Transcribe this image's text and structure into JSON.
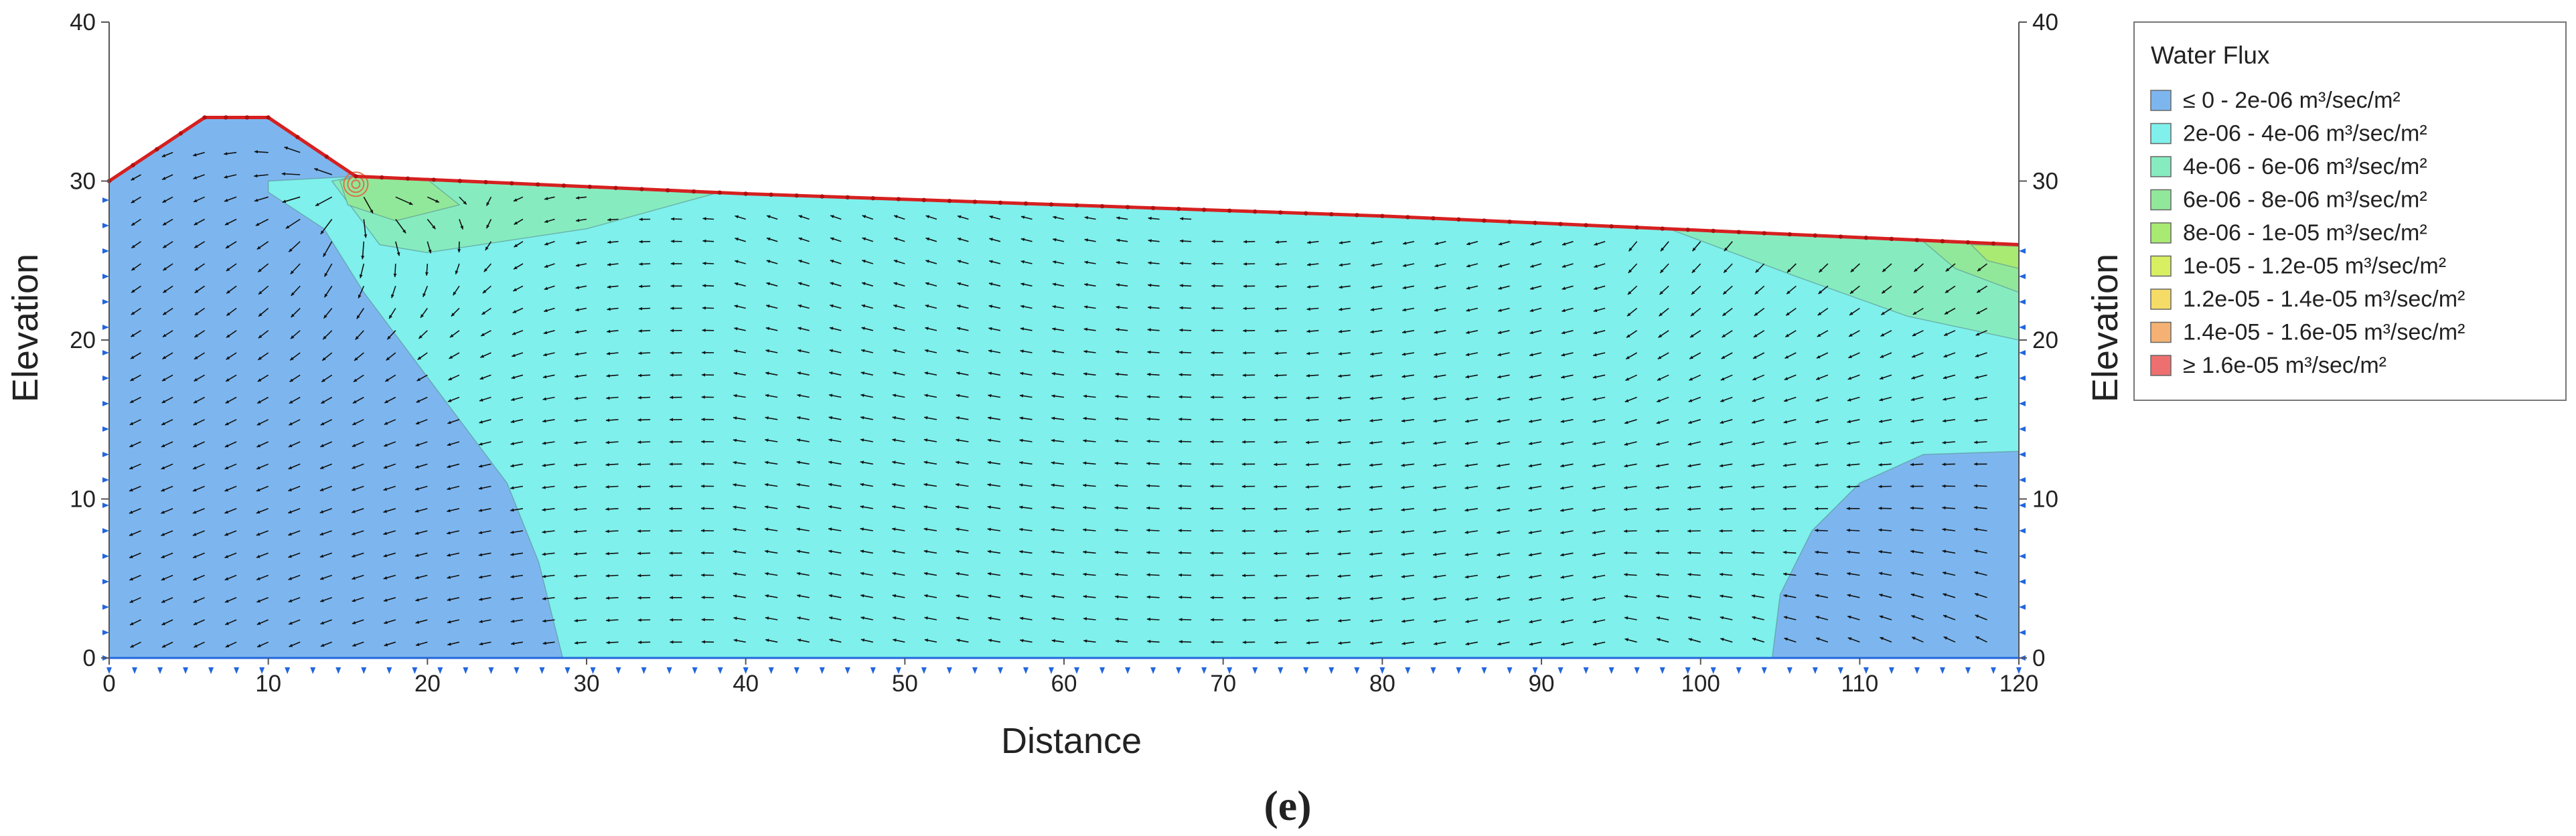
{
  "chart_data": {
    "type": "heatmap",
    "xlabel": "Distance",
    "ylabel_left": "Elevation",
    "ylabel_right": "Elevation",
    "xlim": [
      0,
      120
    ],
    "ylim": [
      0,
      40
    ],
    "x_ticks": [
      0,
      10,
      20,
      30,
      40,
      50,
      60,
      70,
      80,
      90,
      100,
      110,
      120
    ],
    "y_ticks": [
      0,
      10,
      20,
      30,
      40
    ],
    "panel_label": "(e)",
    "legend": {
      "title": "Water Flux",
      "placement": "right",
      "entries": [
        {
          "label": "≤ 0 - 2e-06 m³/sec/m²",
          "color": "#7db6ef"
        },
        {
          "label": "2e-06 - 4e-06 m³/sec/m²",
          "color": "#7ff0ec"
        },
        {
          "label": "4e-06 - 6e-06 m³/sec/m²",
          "color": "#86ecc0"
        },
        {
          "label": "6e-06 - 8e-06 m³/sec/m²",
          "color": "#91e89a"
        },
        {
          "label": "8e-06 - 1e-05 m³/sec/m²",
          "color": "#a9ea72"
        },
        {
          "label": "1e-05 - 1.2e-05 m³/sec/m²",
          "color": "#d8ef62"
        },
        {
          "label": "1.2e-05 - 1.4e-05 m³/sec/m²",
          "color": "#f5dc66"
        },
        {
          "label": "1.4e-05 - 1.6e-05 m³/sec/m²",
          "color": "#f4b173"
        },
        {
          "label": "≥ 1.6e-05 m³/sec/m²",
          "color": "#ee6f6f"
        }
      ]
    },
    "geometry": {
      "surface": [
        [
          0,
          30
        ],
        [
          6,
          34
        ],
        [
          10,
          34
        ],
        [
          15.5,
          30.3
        ],
        [
          40,
          29.2
        ],
        [
          80,
          27.8
        ],
        [
          120,
          26
        ]
      ],
      "flux_zones": [
        {
          "range_index": 0,
          "polygon": [
            [
              0,
              0
            ],
            [
              0,
              30
            ],
            [
              6,
              34
            ],
            [
              10,
              34
            ],
            [
              15.5,
              30.3
            ],
            [
              10,
              30
            ],
            [
              10,
              29.3
            ],
            [
              13.5,
              27
            ],
            [
              16,
              23
            ],
            [
              19,
              19
            ],
            [
              22,
              15
            ],
            [
              25,
              11
            ],
            [
              27,
              6
            ],
            [
              28,
              2
            ],
            [
              28.5,
              0
            ]
          ]
        },
        {
          "range_index": 0,
          "polygon": [
            [
              104.5,
              0
            ],
            [
              105,
              4
            ],
            [
              107,
              8
            ],
            [
              110,
              11
            ],
            [
              114,
              12.8
            ],
            [
              120,
              13
            ],
            [
              120,
              0
            ]
          ]
        },
        {
          "range_index": 2,
          "polygon": [
            [
              14,
              30
            ],
            [
              15.5,
              30.3
            ],
            [
              22,
              30
            ],
            [
              38,
              29.2
            ],
            [
              30,
              27
            ],
            [
              20,
              25.5
            ],
            [
              17,
              26
            ]
          ]
        },
        {
          "range_index": 2,
          "polygon": [
            [
              98,
              27
            ],
            [
              120,
              26
            ],
            [
              120,
              20
            ],
            [
              113,
              21.5
            ],
            [
              106,
              24
            ]
          ]
        },
        {
          "range_index": 3,
          "polygon": [
            [
              14.5,
              30
            ],
            [
              15.5,
              30.3
            ],
            [
              20,
              30.1
            ],
            [
              22,
              28.5
            ],
            [
              18,
              27.5
            ],
            [
              15,
              28.5
            ]
          ]
        },
        {
          "range_index": 3,
          "polygon": [
            [
              114,
              26.2
            ],
            [
              120,
              26
            ],
            [
              120,
              23
            ],
            [
              116,
              24.5
            ]
          ]
        },
        {
          "range_index": 4,
          "polygon": [
            [
              117,
              26
            ],
            [
              120,
              25.9
            ],
            [
              120,
              24.5
            ],
            [
              118,
              25
            ]
          ]
        }
      ],
      "seepage_point": [
        15.5,
        29.8
      ]
    }
  }
}
